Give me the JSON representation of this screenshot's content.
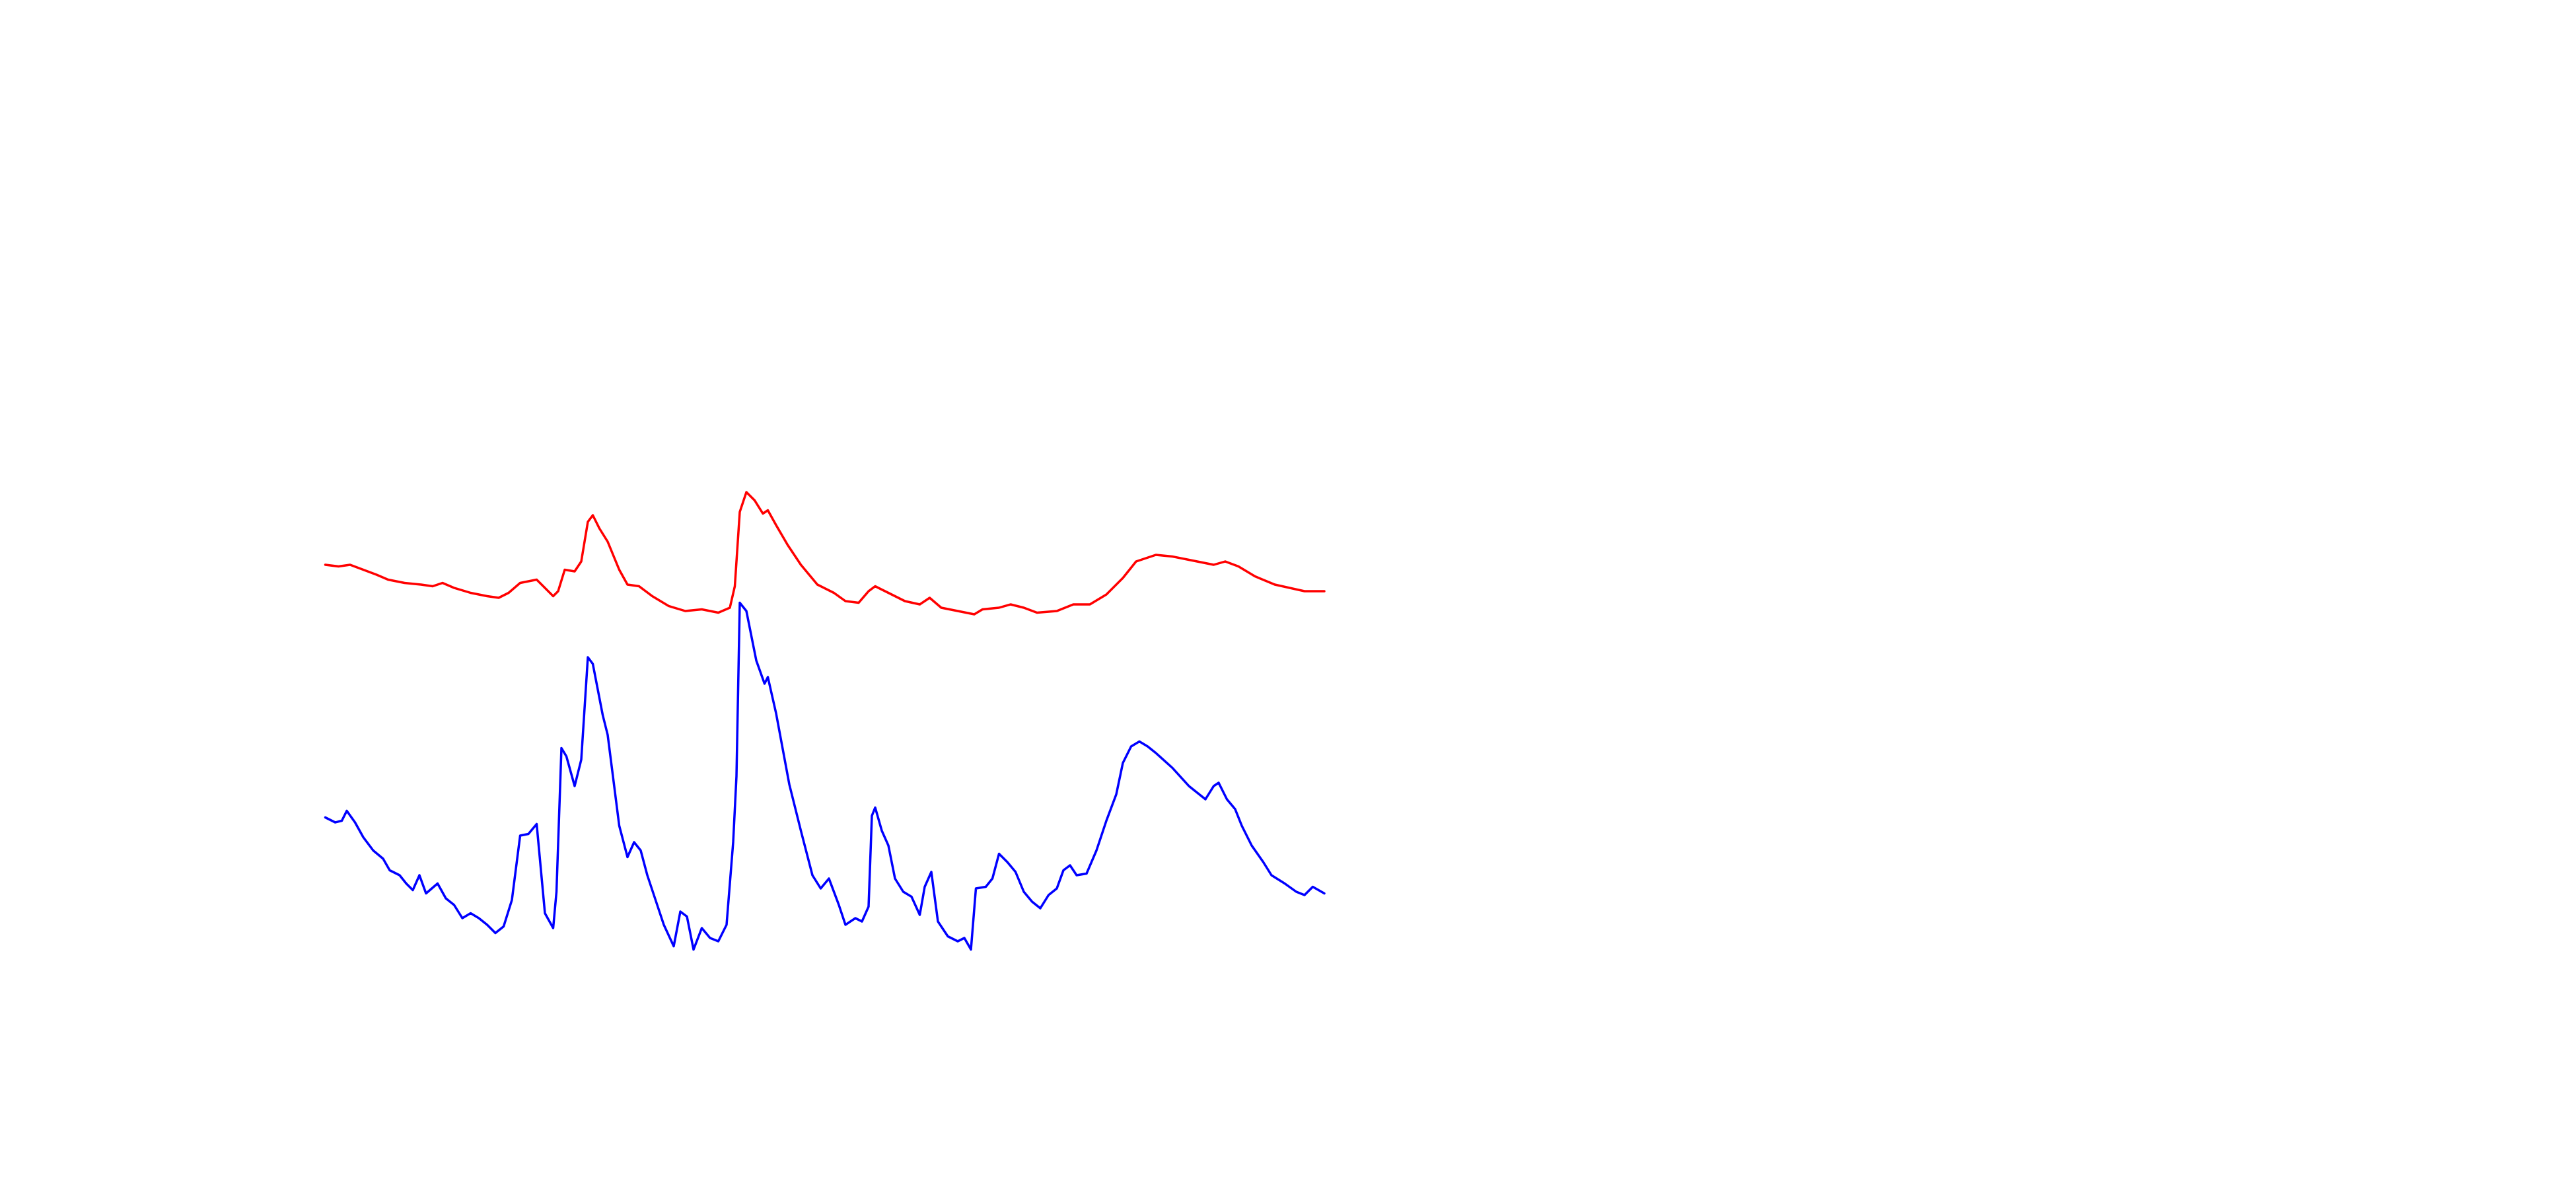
{
  "chart_data": {
    "type": "line",
    "xlim": [
      0,
      1560
    ],
    "ylim": [
      0,
      720
    ],
    "series": [
      {
        "color": "#ff0000",
        "x": [
          197,
          205,
          212,
          220,
          228,
          235,
          245,
          255,
          262,
          268,
          275,
          285,
          295,
          302,
          308,
          315,
          325,
          335,
          338,
          342,
          348,
          352,
          356,
          359,
          363,
          368,
          375,
          380,
          387,
          395,
          405,
          415,
          425,
          435,
          442,
          445,
          448,
          452,
          457,
          462,
          465,
          470,
          477,
          485,
          495,
          505,
          512,
          520,
          526,
          530,
          538,
          548,
          557,
          563,
          570,
          580,
          590,
          595,
          605,
          612,
          620,
          628,
          640,
          650,
          660,
          670,
          680,
          688,
          700,
          710,
          720,
          735,
          742,
          750,
          760,
          772,
          790,
          802
        ],
        "values": [
          378,
          377,
          378,
          375,
          372,
          369,
          367,
          366,
          365,
          367,
          364,
          361,
          359,
          358,
          361,
          367,
          369,
          359,
          362,
          375,
          374,
          380,
          404,
          408,
          400,
          392,
          375,
          366,
          365,
          359,
          353,
          350,
          351,
          349,
          352,
          365,
          410,
          422,
          417,
          409,
          411,
          402,
          390,
          378,
          366,
          361,
          356,
          355,
          362,
          365,
          361,
          356,
          354,
          358,
          352,
          350,
          348,
          351,
          352,
          354,
          352,
          349,
          350,
          354,
          354,
          360,
          370,
          380,
          384,
          383,
          381,
          378,
          380,
          377,
          371,
          366,
          362,
          362
        ]
      },
      {
        "color": "#0000ff",
        "x": [
          197,
          203,
          207,
          210,
          215,
          220,
          226,
          232,
          236,
          242,
          246,
          250,
          254,
          258,
          265,
          270,
          275,
          280,
          285,
          290,
          295,
          300,
          305,
          310,
          315,
          320,
          325,
          330,
          335,
          337,
          340,
          343,
          348,
          352,
          356,
          359,
          365,
          368,
          375,
          380,
          384,
          388,
          392,
          397,
          402,
          408,
          412,
          416,
          420,
          425,
          430,
          435,
          440,
          444,
          446,
          448,
          452,
          458,
          463,
          465,
          470,
          478,
          485,
          492,
          497,
          502,
          508,
          512,
          518,
          522,
          526,
          528,
          530,
          534,
          538,
          542,
          547,
          552,
          557,
          560,
          564,
          568,
          574,
          580,
          584,
          588,
          591,
          597,
          601,
          605,
          610,
          615,
          620,
          625,
          630,
          635,
          640,
          644,
          648,
          652,
          658,
          664,
          670,
          676,
          680,
          685,
          690,
          695,
          700,
          710,
          720,
          730,
          735,
          738,
          743,
          748,
          752,
          758,
          765,
          770,
          778,
          785,
          790,
          795,
          802
        ],
        "values": [
          225,
          222,
          223,
          229,
          222,
          213,
          205,
          200,
          193,
          190,
          185,
          181,
          190,
          179,
          185,
          176,
          172,
          164,
          167,
          164,
          160,
          155,
          159,
          175,
          214,
          215,
          221,
          167,
          158,
          180,
          267,
          262,
          244,
          260,
          322,
          318,
          287,
          275,
          220,
          201,
          210,
          205,
          190,
          175,
          160,
          147,
          168,
          165,
          145,
          158,
          152,
          150,
          160,
          210,
          250,
          355,
          350,
          320,
          306,
          310,
          288,
          245,
          217,
          190,
          182,
          188,
          172,
          160,
          164,
          162,
          171,
          226,
          231,
          217,
          208,
          188,
          180,
          177,
          166,
          183,
          192,
          162,
          153,
          150,
          152,
          145,
          182,
          183,
          188,
          203,
          198,
          192,
          180,
          174,
          170,
          178,
          182,
          193,
          196,
          190,
          191,
          205,
          223,
          239,
          258,
          268,
          271,
          268,
          264,
          255,
          244,
          236,
          244,
          246,
          236,
          230,
          220,
          208,
          198,
          190,
          185,
          180,
          178,
          183,
          179
        ]
      }
    ]
  }
}
